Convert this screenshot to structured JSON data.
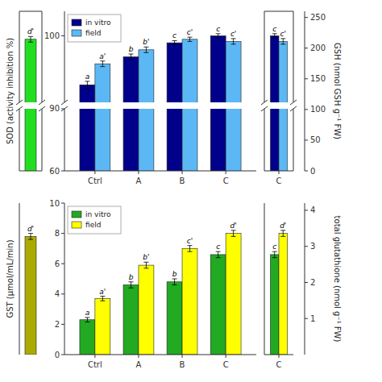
{
  "chart_data": [
    {
      "type": "bar",
      "categories": [
        null
      ],
      "series": [
        {
          "color": "#22DD22",
          "values": [
            99.5
          ],
          "errors": [
            0.4
          ],
          "labels": [
            "d'"
          ]
        }
      ],
      "ylim": [
        90.5,
        103.5
      ],
      "ylim_lower": [
        60,
        90
      ]
    },
    {
      "type": "bar",
      "categories": [
        "Ctrl",
        "A",
        "B",
        "C"
      ],
      "ylabel": "SOD (activity inhibition %)",
      "series": [
        {
          "name": "in vitro",
          "color": "#00008B",
          "values": [
            93,
            97,
            99,
            100
          ],
          "errors": [
            0.5,
            0.4,
            0.3,
            0.3
          ],
          "labels": [
            "a",
            "b",
            "c",
            "c"
          ]
        },
        {
          "name": "field",
          "color": "#5BB8F5",
          "values": [
            96,
            98,
            99.5,
            99.2
          ],
          "errors": [
            0.4,
            0.4,
            0.3,
            0.4
          ],
          "labels": [
            "a'",
            "b'",
            "c'",
            "c'"
          ]
        }
      ],
      "ylim": [
        90.5,
        103.5
      ],
      "yticks": [
        100
      ],
      "ylim_lower": [
        60,
        90
      ],
      "yticks_lower": [
        60,
        90
      ],
      "legend": "upper left"
    },
    {
      "type": "bar",
      "categories": [
        "C"
      ],
      "series": [
        {
          "color": "#00008B",
          "values": [
            100
          ],
          "errors": [
            0.3
          ],
          "labels": [
            "c"
          ]
        },
        {
          "color": "#5BB8F5",
          "values": [
            99.2
          ],
          "errors": [
            0.4
          ],
          "labels": [
            "c'"
          ]
        }
      ],
      "ylim": [
        90.5,
        103.5
      ],
      "ylim_lower": [
        60,
        90
      ],
      "y2label": "GSH (nmol GSH g⁻¹ FW)",
      "y2lim": [
        0,
        260
      ],
      "y2ticks": [
        0,
        50,
        100,
        150,
        200,
        250
      ]
    },
    {
      "type": "bar",
      "categories": [
        null
      ],
      "series": [
        {
          "color": "#AAAA00",
          "values": [
            7.8
          ],
          "errors": [
            0.2
          ],
          "labels": [
            "d'"
          ]
        }
      ],
      "ylim": [
        0,
        10
      ]
    },
    {
      "type": "bar",
      "categories": [
        "Ctrl",
        "A",
        "B",
        "C"
      ],
      "ylabel": "GST (μmol/mL/min)",
      "series": [
        {
          "name": "in vitro",
          "color": "#22AA22",
          "values": [
            2.3,
            4.6,
            4.8,
            6.6
          ],
          "errors": [
            0.15,
            0.2,
            0.2,
            0.2
          ],
          "labels": [
            "a",
            "b",
            "b",
            "c"
          ]
        },
        {
          "name": "field",
          "color": "#FFFF00",
          "values": [
            3.7,
            5.9,
            7.0,
            8.0
          ],
          "errors": [
            0.15,
            0.2,
            0.2,
            0.2
          ],
          "labels": [
            "a'",
            "b'",
            "c'",
            "d'"
          ]
        }
      ],
      "ylim": [
        0,
        10
      ],
      "yticks": [
        0,
        2,
        4,
        6,
        8,
        10
      ],
      "legend": "upper left"
    },
    {
      "type": "bar",
      "categories": [
        "C"
      ],
      "series": [
        {
          "color": "#22AA22",
          "values": [
            6.6
          ],
          "errors": [
            0.2
          ],
          "labels": [
            "c"
          ]
        },
        {
          "color": "#FFFF00",
          "values": [
            8.0
          ],
          "errors": [
            0.2
          ],
          "labels": [
            "d'"
          ]
        }
      ],
      "ylim": [
        0,
        10
      ],
      "y2label": "total glutathione (nmol g⁻¹ FW)",
      "y2lim": [
        0,
        4.2
      ],
      "y2ticks": [
        1,
        2,
        3,
        4
      ]
    }
  ]
}
